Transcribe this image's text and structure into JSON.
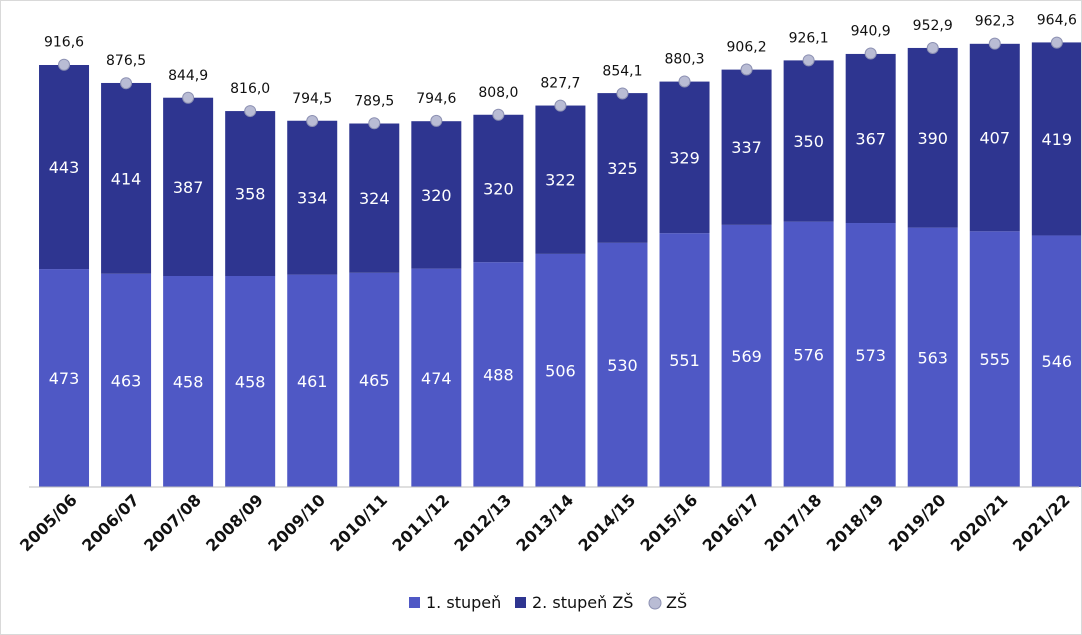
{
  "chart_data": {
    "type": "bar",
    "stacked": true,
    "categories": [
      "2005/06",
      "2006/07",
      "2007/08",
      "2008/09",
      "2009/10",
      "2010/11",
      "2011/12",
      "2012/13",
      "2013/14",
      "2014/15",
      "2015/16",
      "2016/17",
      "2017/18",
      "2018/19",
      "2019/20",
      "2020/21",
      "2021/22"
    ],
    "series": [
      {
        "name": "1. stupeň",
        "color": "#4f58c5",
        "values": [
          473,
          463,
          458,
          458,
          461,
          465,
          474,
          488,
          506,
          530,
          551,
          569,
          576,
          573,
          563,
          555,
          546
        ]
      },
      {
        "name": "2. stupeň ZŠ",
        "color": "#2e3590",
        "values": [
          443,
          414,
          387,
          358,
          334,
          324,
          320,
          320,
          322,
          325,
          329,
          337,
          350,
          367,
          390,
          407,
          419
        ]
      }
    ],
    "line_series": {
      "name": "ZŠ",
      "marker_color": "#b9bcd4",
      "values": [
        916.6,
        876.5,
        844.9,
        816.0,
        794.5,
        789.5,
        794.6,
        808.0,
        827.7,
        854.1,
        880.3,
        906.2,
        926.1,
        940.9,
        952.9,
        962.3,
        964.6
      ],
      "labels": [
        "916,6",
        "876,5",
        "844,9",
        "816,0",
        "794,5",
        "789,5",
        "794,6",
        "808,0",
        "827,7",
        "854,1",
        "880,3",
        "906,2",
        "926,1",
        "940,9",
        "952,9",
        "962,3",
        "964,6"
      ]
    },
    "ylim": [
      0,
      1000
    ],
    "grid": false,
    "legend_position": "bottom-center",
    "title": "",
    "xlabel": "",
    "ylabel": ""
  }
}
